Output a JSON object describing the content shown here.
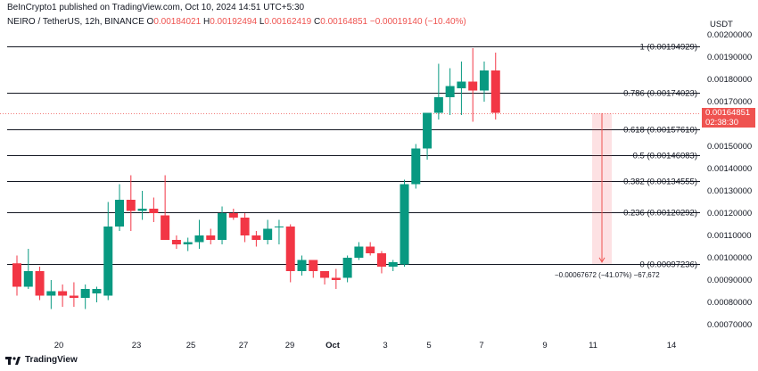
{
  "header": {
    "publisher": "BeInCrypto1 published on TradingView.com, Oct 10, 2024 14:51 UTC+5:30",
    "symbol": "NEIRO / TetherUS, 12h, BINANCE",
    "o_label": "O",
    "o_value": "0.00184021",
    "h_label": "H",
    "h_value": "0.00192494",
    "l_label": "L",
    "l_value": "0.00162419",
    "c_label": "C",
    "c_value": "0.00164851",
    "change": "−0.00019140 (−10.40%)"
  },
  "axis": {
    "currency": "USDT"
  },
  "price_badge": {
    "price": "0.00164851",
    "timer": "02:38:30"
  },
  "measure_label": "−0.00067672 (−41.07%) −67,672",
  "footer": {
    "brand": "TradingView"
  },
  "colors": {
    "up": "#089981",
    "down": "#f23645",
    "fib_line": "#131722",
    "badge": "#ef5350"
  },
  "chart_data": {
    "type": "candlestick",
    "y_ticks": [
      "0.00200000",
      "0.00190000",
      "0.00180000",
      "0.00170000",
      "0.00150000",
      "0.00140000",
      "0.00130000",
      "0.00120000",
      "0.00110000",
      "0.00100000",
      "0.00090000",
      "0.00080000",
      "0.00070000"
    ],
    "x_ticks": [
      "20",
      "23",
      "25",
      "27",
      "29",
      "Oct",
      "3",
      "5",
      "7",
      "9",
      "11",
      "14"
    ],
    "fib_levels": [
      {
        "label": "1 (0.00194929)",
        "value": 0.00194929
      },
      {
        "label": "0.786 (0.00174023)",
        "value": 0.00174023
      },
      {
        "label": "0.618 (0.00157610)",
        "value": 0.0015761
      },
      {
        "label": "0.5 (0.00146083)",
        "value": 0.00146083
      },
      {
        "label": "0.382 (0.00134555)",
        "value": 0.00134555
      },
      {
        "label": "0.236 (0.00120292)",
        "value": 0.00120292
      },
      {
        "label": "0 (0.00097236)",
        "value": 0.00097236
      }
    ],
    "candles": [
      {
        "o": 0.000975,
        "h": 0.00101,
        "l": 0.00083,
        "c": 0.00087
      },
      {
        "o": 0.00087,
        "h": 0.00104,
        "l": 0.00086,
        "c": 0.00094
      },
      {
        "o": 0.00094,
        "h": 0.00096,
        "l": 0.00081,
        "c": 0.00083
      },
      {
        "o": 0.00083,
        "h": 0.0009,
        "l": 0.00077,
        "c": 0.00085
      },
      {
        "o": 0.00085,
        "h": 0.00088,
        "l": 0.00078,
        "c": 0.00083
      },
      {
        "o": 0.00083,
        "h": 0.00089,
        "l": 0.00078,
        "c": 0.00082
      },
      {
        "o": 0.00082,
        "h": 0.00088,
        "l": 0.00077,
        "c": 0.00086
      },
      {
        "o": 0.00084,
        "h": 0.00087,
        "l": 0.0008,
        "c": 0.00086
      },
      {
        "o": 0.00083,
        "h": 0.00125,
        "l": 0.00081,
        "c": 0.00114
      },
      {
        "o": 0.00114,
        "h": 0.00133,
        "l": 0.00112,
        "c": 0.00126
      },
      {
        "o": 0.00126,
        "h": 0.00137,
        "l": 0.00112,
        "c": 0.00121
      },
      {
        "o": 0.00121,
        "h": 0.0013,
        "l": 0.00117,
        "c": 0.00122
      },
      {
        "o": 0.00122,
        "h": 0.00127,
        "l": 0.00116,
        "c": 0.0012
      },
      {
        "o": 0.00119,
        "h": 0.00137,
        "l": 0.00109,
        "c": 0.00108
      },
      {
        "o": 0.00108,
        "h": 0.0011,
        "l": 0.00104,
        "c": 0.00106
      },
      {
        "o": 0.00106,
        "h": 0.00109,
        "l": 0.00103,
        "c": 0.00107
      },
      {
        "o": 0.00107,
        "h": 0.00117,
        "l": 0.00104,
        "c": 0.0011
      },
      {
        "o": 0.0011,
        "h": 0.00113,
        "l": 0.00106,
        "c": 0.00108
      },
      {
        "o": 0.00108,
        "h": 0.00123,
        "l": 0.00106,
        "c": 0.0012
      },
      {
        "o": 0.0012,
        "h": 0.00122,
        "l": 0.00117,
        "c": 0.00118
      },
      {
        "o": 0.00118,
        "h": 0.0012,
        "l": 0.00107,
        "c": 0.0011
      },
      {
        "o": 0.0011,
        "h": 0.00112,
        "l": 0.00105,
        "c": 0.00108
      },
      {
        "o": 0.00108,
        "h": 0.00117,
        "l": 0.00106,
        "c": 0.00113
      },
      {
        "o": 0.00114,
        "h": 0.00117,
        "l": 0.00106,
        "c": 0.00114
      },
      {
        "o": 0.00114,
        "h": 0.00115,
        "l": 0.00089,
        "c": 0.00094
      },
      {
        "o": 0.00094,
        "h": 0.00101,
        "l": 0.00092,
        "c": 0.00099
      },
      {
        "o": 0.00099,
        "h": 0.00099,
        "l": 0.00091,
        "c": 0.00094
      },
      {
        "o": 0.00094,
        "h": 0.00094,
        "l": 0.00088,
        "c": 0.00091
      },
      {
        "o": 0.00091,
        "h": 0.00095,
        "l": 0.00086,
        "c": 0.0009
      },
      {
        "o": 0.00091,
        "h": 0.00101,
        "l": 0.00089,
        "c": 0.001
      },
      {
        "o": 0.001,
        "h": 0.00107,
        "l": 0.00099,
        "c": 0.00105
      },
      {
        "o": 0.00105,
        "h": 0.00107,
        "l": 0.00101,
        "c": 0.00102
      },
      {
        "o": 0.00102,
        "h": 0.00103,
        "l": 0.00093,
        "c": 0.00096
      },
      {
        "o": 0.00096,
        "h": 0.00099,
        "l": 0.00094,
        "c": 0.00098
      },
      {
        "o": 0.00097,
        "h": 0.00135,
        "l": 0.00096,
        "c": 0.00133
      },
      {
        "o": 0.00133,
        "h": 0.00151,
        "l": 0.00131,
        "c": 0.00149
      },
      {
        "o": 0.00149,
        "h": 0.00164,
        "l": 0.00144,
        "c": 0.00165
      },
      {
        "o": 0.00165,
        "h": 0.00187,
        "l": 0.00162,
        "c": 0.00172
      },
      {
        "o": 0.00172,
        "h": 0.00185,
        "l": 0.00164,
        "c": 0.00177
      },
      {
        "o": 0.00176,
        "h": 0.00188,
        "l": 0.00164,
        "c": 0.00179
      },
      {
        "o": 0.00179,
        "h": 0.00194,
        "l": 0.00161,
        "c": 0.00175
      },
      {
        "o": 0.00175,
        "h": 0.00188,
        "l": 0.0017,
        "c": 0.00184
      },
      {
        "o": 0.00184,
        "h": 0.00192,
        "l": 0.00162,
        "c": 0.00165
      }
    ]
  }
}
